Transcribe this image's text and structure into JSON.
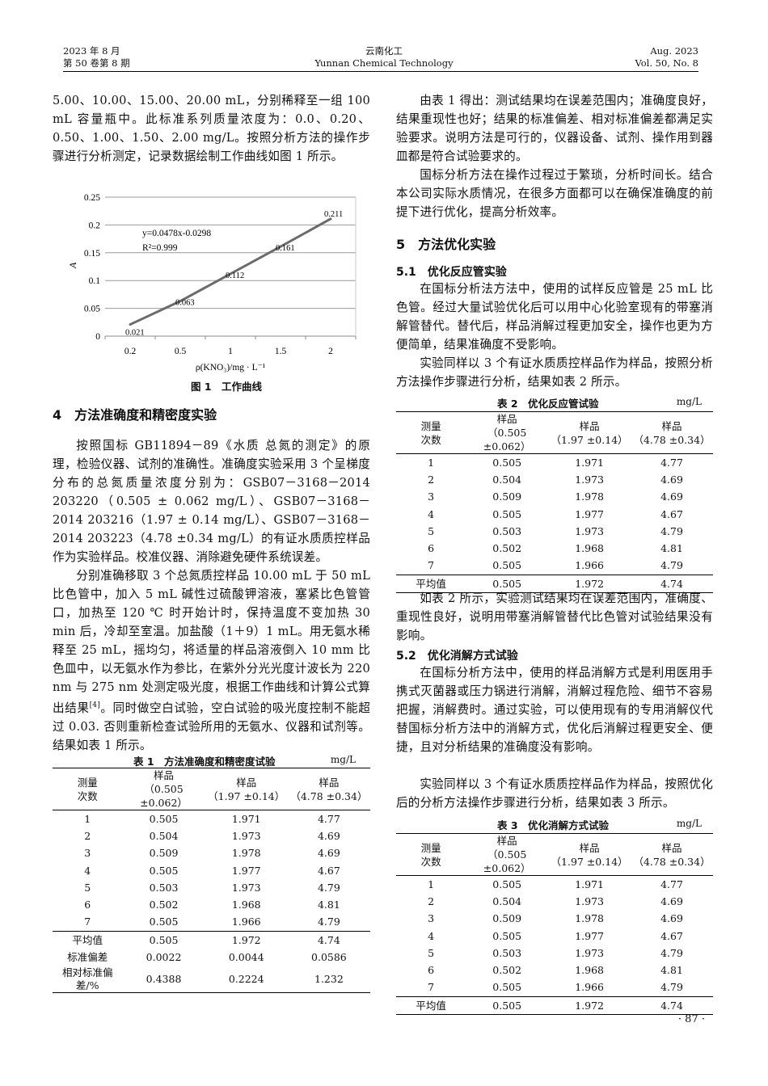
{
  "header": {
    "left_1": "2023 年 8 月",
    "left_2": "第 50 卷第 8 期",
    "center_1": "云南化工",
    "center_2": "Yunnan Chemical Technology",
    "right_1": "Aug. 2023",
    "right_2": "Vol. 50, No. 8"
  },
  "left": {
    "para1": "5.00、10.00、15.00、20.00 mL，分别稀释至一组 100 mL 容量瓶中。此标准系列质量浓度为：0.0、0.20、0.50、1.00、1.50、2.00 mg/L。按照分析方法的操作步骤进行分析测定，记录数据绘制工作曲线如图 1 所示。",
    "figure_caption": "图 1　工作曲线",
    "section4": "4　方法准确度和精密度实验",
    "para2": "按照国标 GB11894－89《水质 总氮的测定》的原理，检验仪器、试剂的准确性。准确度实验采用 3 个呈梯度分布的总氮质量浓度分别为：GSB07－3168－2014 203220（0.505 ± 0.062 mg/L）、GSB07－3168－2014 203216（1.97 ± 0.14 mg/L）、GSB07－3168－2014 203223（4.78 ±0.34 mg/L）的有证水质质控样品作为实验样品。校准仪器、消除避免硬件系统误差。",
    "para3a": "分别准确移取 3 个总氮质控样品 10.00 mL 于 50 mL 比色管中，加入 5 mL 碱性过硫酸钾溶液，塞紧比色管管口，加热至 120 ℃ 时开始计时，保持温度不变加热 30 min 后，冷却至室温。加盐酸（1＋9）1 mL。用无氨水稀释至 25 mL，摇均匀，将适量的样品溶液倒入 10 mm 比色皿中，以无氨水作为参比，在紫外分光光度计波长为 220 nm 与 275 nm 处测定吸光度，根据工作曲线和计算公式算出结果",
    "para3_ref": "[4]",
    "para3b": "。同时做空白试验，空白试验的吸光度控制不能超过 0.03. 否则重新检查试验所用的无氨水、仪器和试剂等。结果如表 1 所示。"
  },
  "chart_data": {
    "type": "line",
    "categories": [
      "0.2",
      "0.5",
      "1",
      "1.5",
      "2"
    ],
    "values": [
      0.021,
      0.063,
      0.112,
      0.161,
      0.211
    ],
    "data_labels": [
      "0.021",
      "0.063",
      "0.112",
      "0.161",
      "0.211"
    ],
    "xlabel": "ρ(KNO₃)/mg · L⁻¹",
    "ylabel": "A",
    "ylim": [
      0,
      0.25
    ],
    "yticks": [
      "0",
      "0.05",
      "0.1",
      "0.15",
      "0.2",
      "0.25"
    ],
    "equation": "y=0.0478x-0.0298",
    "r_squared": "R²=0.999",
    "grid": "horizontal",
    "line_color": "#6b6b6b"
  },
  "tables": {
    "t1": {
      "title": "表 1　方法准确度和精密度试验",
      "unit": "mg/L",
      "headers": [
        [
          "测量",
          "次数"
        ],
        [
          "样品",
          "（0.505 ±0.062）"
        ],
        [
          "样品",
          "（1.97 ±0.14）"
        ],
        [
          "样品",
          "（4.78 ±0.34）"
        ]
      ],
      "rows": [
        [
          "1",
          "0.505",
          "1.971",
          "4.77"
        ],
        [
          "2",
          "0.504",
          "1.973",
          "4.69"
        ],
        [
          "3",
          "0.509",
          "1.978",
          "4.69"
        ],
        [
          "4",
          "0.505",
          "1.977",
          "4.67"
        ],
        [
          "5",
          "0.503",
          "1.973",
          "4.79"
        ],
        [
          "6",
          "0.502",
          "1.968",
          "4.81"
        ],
        [
          "7",
          "0.505",
          "1.966",
          "4.79"
        ]
      ],
      "summary": [
        [
          "平均值",
          "0.505",
          "1.972",
          "4.74"
        ],
        [
          "标准偏差",
          "0.0022",
          "0.0044",
          "0.0586"
        ],
        [
          "相对标准偏差/%",
          "0.4388",
          "0.2224",
          "1.232"
        ]
      ]
    },
    "t2": {
      "title": "表 2　优化反应管试验",
      "unit": "mg/L",
      "headers": [
        [
          "测量",
          "次数"
        ],
        [
          "样品",
          "（0.505 ±0.062）"
        ],
        [
          "样品",
          "（1.97 ±0.14）"
        ],
        [
          "样品",
          "（4.78 ±0.34）"
        ]
      ],
      "rows": [
        [
          "1",
          "0.505",
          "1.971",
          "4.77"
        ],
        [
          "2",
          "0.504",
          "1.973",
          "4.69"
        ],
        [
          "3",
          "0.509",
          "1.978",
          "4.69"
        ],
        [
          "4",
          "0.505",
          "1.977",
          "4.67"
        ],
        [
          "5",
          "0.503",
          "1.973",
          "4.79"
        ],
        [
          "6",
          "0.502",
          "1.968",
          "4.81"
        ],
        [
          "7",
          "0.505",
          "1.966",
          "4.79"
        ]
      ],
      "summary": [
        [
          "平均值",
          "0.505",
          "1.972",
          "4.74"
        ]
      ]
    },
    "t3": {
      "title": "表 3　优化消解方式试验",
      "unit": "mg/L",
      "headers": [
        [
          "测量",
          "次数"
        ],
        [
          "样品",
          "（0.505 ±0.062）"
        ],
        [
          "样品",
          "（1.97 ±0.14）"
        ],
        [
          "样品",
          "（4.78 ±0.34）"
        ]
      ],
      "rows": [
        [
          "1",
          "0.505",
          "1.971",
          "4.77"
        ],
        [
          "2",
          "0.504",
          "1.973",
          "4.69"
        ],
        [
          "3",
          "0.509",
          "1.978",
          "4.69"
        ],
        [
          "4",
          "0.505",
          "1.977",
          "4.67"
        ],
        [
          "5",
          "0.503",
          "1.973",
          "4.79"
        ],
        [
          "6",
          "0.502",
          "1.968",
          "4.81"
        ],
        [
          "7",
          "0.505",
          "1.966",
          "4.79"
        ]
      ],
      "summary": [
        [
          "平均值",
          "0.505",
          "1.972",
          "4.74"
        ]
      ]
    }
  },
  "right": {
    "para1": "由表 1 得出：测试结果均在误差范围内；准确度良好，结果重现性也好；结果的标准偏差、相对标准偏差都满足实验要求。说明方法是可行的，仪器设备、试剂、操作用到器皿都是符合试验要求的。",
    "para2": "国标分析方法在操作过程过于繁琐，分析时间长。结合本公司实际水质情况，在很多方面都可以在确保准确度的前提下进行优化，提高分析效率。",
    "section5": "5　方法优化实验",
    "section51": "5.1　优化反应管实验",
    "para3": "在国标分析法方法中，使用的试样反应管是 25 mL 比色管。经过大量试验优化后可以用中心化验室现有的带塞消解管替代。替代后，样品消解过程更加安全，操作也更为方便简单，结果准确度不受影响。",
    "para4": "实验同样以 3 个有证水质质控样品作为样品，按照分析方法操作步骤进行分析，结果如表 2 所示。",
    "para5": "如表 2 所示，实验测试结果均在误差范围内，准确度、重现性良好，说明用带塞消解管替代比色管对试验结果没有影响。",
    "section52": "5.2　优化消解方式试验",
    "para6": "在国标分析方法中，使用的样品消解方式是利用医用手携式灭菌器或压力锅进行消解，消解过程危险、细节不容易把握，消解费时。通过实验，可以使用现有的专用消解仪代替国标分析方法中的消解方式，优化后消解过程更安全、便捷，且对分析结果的准确度没有影响。",
    "para7": "实验同样以 3 个有证水质质控样品作为样品，按照优化后的分析方法操作步骤进行分析，结果如表 3 所示。"
  },
  "page_number": "· 87 ·"
}
